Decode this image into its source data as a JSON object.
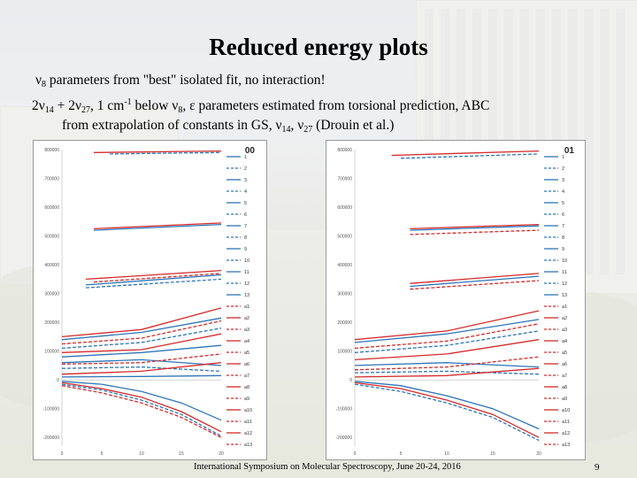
{
  "slide": {
    "title": "Reduced energy plots",
    "line1": {
      "sym1": "ν",
      "sub1": "8",
      "rest": " parameters from \"best\" isolated fit, no interaction!"
    },
    "line2": {
      "a": " 2ν",
      "sub_a": "14",
      "b": " + 2ν",
      "sub_b": "27",
      "c": ", 1 cm",
      "sup_c": "-1",
      "d": " below ν",
      "sub_d": "8",
      "e": ", ε parameters estimated from torsional prediction, ABC"
    },
    "line3": {
      "a": "from extrapolation of constants in GS, ν",
      "sub_a": "14",
      "b": ", ν",
      "sub_b": "27",
      "c": " (Drouin et al.)"
    },
    "footer": "International Symposium on Molecular Spectroscopy, June 20-24, 2016",
    "page_number": "9"
  },
  "colors": {
    "blue": "#2e75b6",
    "red": "#d32b2b"
  },
  "chart_data": [
    {
      "type": "line",
      "title": "00",
      "ylim": [
        -230000,
        800000
      ],
      "yticks": [
        "800000",
        "700000",
        "600000",
        "500000",
        "400000",
        "300000",
        "200000",
        "100000",
        "0",
        "-100000",
        "-200000"
      ],
      "xticks": [
        "0",
        "5",
        "10",
        "15",
        "20"
      ],
      "xlim": [
        0,
        20
      ],
      "legend": [
        "1",
        "2",
        "3",
        "4",
        "5",
        "6",
        "7",
        "8",
        "9",
        "10",
        "11",
        "12",
        "13",
        "a1",
        "a2",
        "a3",
        "a4",
        "a5",
        "a6",
        "a7",
        "a8",
        "a9",
        "a10",
        "a11",
        "a12",
        "a13"
      ],
      "series": [
        {
          "color": "red",
          "dash": false,
          "x": [
            4,
            20
          ],
          "y": [
            790000,
            795000
          ]
        },
        {
          "color": "blue",
          "dash": true,
          "x": [
            6,
            20
          ],
          "y": [
            785000,
            790000
          ]
        },
        {
          "color": "red",
          "dash": false,
          "x": [
            4,
            20
          ],
          "y": [
            525000,
            545000
          ]
        },
        {
          "color": "blue",
          "dash": false,
          "x": [
            4,
            20
          ],
          "y": [
            520000,
            540000
          ]
        },
        {
          "color": "red",
          "dash": false,
          "x": [
            3,
            20
          ],
          "y": [
            350000,
            380000
          ]
        },
        {
          "color": "blue",
          "dash": false,
          "x": [
            3,
            20
          ],
          "y": [
            330000,
            365000
          ]
        },
        {
          "color": "red",
          "dash": true,
          "x": [
            4,
            20
          ],
          "y": [
            340000,
            370000
          ]
        },
        {
          "color": "blue",
          "dash": true,
          "x": [
            3,
            20
          ],
          "y": [
            320000,
            350000
          ]
        },
        {
          "color": "red",
          "dash": false,
          "x": [
            0,
            10,
            20
          ],
          "y": [
            150000,
            175000,
            250000
          ]
        },
        {
          "color": "blue",
          "dash": false,
          "x": [
            0,
            10,
            20
          ],
          "y": [
            140000,
            165000,
            215000
          ]
        },
        {
          "color": "red",
          "dash": true,
          "x": [
            0,
            10,
            20
          ],
          "y": [
            125000,
            145000,
            205000
          ]
        },
        {
          "color": "blue",
          "dash": true,
          "x": [
            0,
            10,
            20
          ],
          "y": [
            110000,
            130000,
            180000
          ]
        },
        {
          "color": "red",
          "dash": false,
          "x": [
            0,
            10,
            20
          ],
          "y": [
            95000,
            105000,
            160000
          ]
        },
        {
          "color": "blue",
          "dash": false,
          "x": [
            0,
            10,
            20
          ],
          "y": [
            80000,
            95000,
            120000
          ]
        },
        {
          "color": "blue",
          "dash": false,
          "x": [
            0,
            10,
            20
          ],
          "y": [
            60000,
            70000,
            50000
          ]
        },
        {
          "color": "red",
          "dash": true,
          "x": [
            0,
            10,
            20
          ],
          "y": [
            55000,
            60000,
            90000
          ]
        },
        {
          "color": "blue",
          "dash": true,
          "x": [
            0,
            10,
            20
          ],
          "y": [
            40000,
            45000,
            30000
          ]
        },
        {
          "color": "red",
          "dash": false,
          "x": [
            0,
            10,
            20
          ],
          "y": [
            20000,
            30000,
            60000
          ]
        },
        {
          "color": "blue",
          "dash": false,
          "x": [
            0,
            10,
            20
          ],
          "y": [
            10000,
            12000,
            15000
          ]
        },
        {
          "color": "red",
          "dash": false,
          "x": [
            0,
            5,
            10,
            15,
            20
          ],
          "y": [
            -10000,
            -30000,
            -60000,
            -110000,
            -180000
          ]
        },
        {
          "color": "blue",
          "dash": true,
          "x": [
            0,
            5,
            10,
            15,
            20
          ],
          "y": [
            -15000,
            -35000,
            -70000,
            -120000,
            -195000
          ]
        },
        {
          "color": "red",
          "dash": true,
          "x": [
            0,
            5,
            10,
            15,
            20
          ],
          "y": [
            -20000,
            -45000,
            -80000,
            -130000,
            -200000
          ]
        },
        {
          "color": "blue",
          "dash": false,
          "x": [
            0,
            5,
            10,
            15,
            20
          ],
          "y": [
            -5000,
            -15000,
            -40000,
            -80000,
            -140000
          ]
        }
      ]
    },
    {
      "type": "line",
      "title": "01",
      "ylim": [
        -230000,
        800000
      ],
      "yticks": [
        "800000",
        "700000",
        "600000",
        "500000",
        "400000",
        "300000",
        "200000",
        "100000",
        "0",
        "-100000",
        "-200000"
      ],
      "xticks": [
        "0",
        "5",
        "10",
        "15",
        "20"
      ],
      "xlim": [
        0,
        20
      ],
      "legend": [
        "1",
        "2",
        "3",
        "4",
        "5",
        "6",
        "7",
        "8",
        "9",
        "10",
        "11",
        "12",
        "13",
        "a1",
        "a2",
        "a3",
        "a4",
        "a5",
        "a6",
        "a7",
        "a8",
        "a9",
        "a10",
        "a11",
        "a12",
        "a13"
      ],
      "series": [
        {
          "color": "red",
          "dash": false,
          "x": [
            4,
            20
          ],
          "y": [
            780000,
            795000
          ]
        },
        {
          "color": "blue",
          "dash": true,
          "x": [
            5,
            20
          ],
          "y": [
            770000,
            785000
          ]
        },
        {
          "color": "red",
          "dash": false,
          "x": [
            6,
            20
          ],
          "y": [
            525000,
            540000
          ]
        },
        {
          "color": "blue",
          "dash": false,
          "x": [
            6,
            20
          ],
          "y": [
            520000,
            535000
          ]
        },
        {
          "color": "red",
          "dash": true,
          "x": [
            6,
            20
          ],
          "y": [
            505000,
            520000
          ]
        },
        {
          "color": "red",
          "dash": false,
          "x": [
            6,
            20
          ],
          "y": [
            335000,
            370000
          ]
        },
        {
          "color": "blue",
          "dash": false,
          "x": [
            6,
            20
          ],
          "y": [
            325000,
            360000
          ]
        },
        {
          "color": "red",
          "dash": true,
          "x": [
            6,
            20
          ],
          "y": [
            315000,
            345000
          ]
        },
        {
          "color": "red",
          "dash": false,
          "x": [
            0,
            10,
            20
          ],
          "y": [
            140000,
            170000,
            240000
          ]
        },
        {
          "color": "blue",
          "dash": false,
          "x": [
            0,
            10,
            20
          ],
          "y": [
            130000,
            160000,
            210000
          ]
        },
        {
          "color": "red",
          "dash": true,
          "x": [
            0,
            10,
            20
          ],
          "y": [
            110000,
            135000,
            195000
          ]
        },
        {
          "color": "blue",
          "dash": true,
          "x": [
            0,
            10,
            20
          ],
          "y": [
            95000,
            120000,
            170000
          ]
        },
        {
          "color": "red",
          "dash": false,
          "x": [
            0,
            10,
            20
          ],
          "y": [
            70000,
            90000,
            140000
          ]
        },
        {
          "color": "blue",
          "dash": false,
          "x": [
            0,
            10,
            20
          ],
          "y": [
            50000,
            60000,
            45000
          ]
        },
        {
          "color": "red",
          "dash": true,
          "x": [
            0,
            10,
            20
          ],
          "y": [
            35000,
            45000,
            80000
          ]
        },
        {
          "color": "blue",
          "dash": true,
          "x": [
            0,
            10,
            20
          ],
          "y": [
            25000,
            30000,
            20000
          ]
        },
        {
          "color": "red",
          "dash": false,
          "x": [
            0,
            10,
            20
          ],
          "y": [
            10000,
            15000,
            40000
          ]
        },
        {
          "color": "red",
          "dash": false,
          "x": [
            0,
            5,
            10,
            15,
            20
          ],
          "y": [
            -10000,
            -30000,
            -70000,
            -120000,
            -200000
          ]
        },
        {
          "color": "blue",
          "dash": true,
          "x": [
            0,
            5,
            10,
            15,
            20
          ],
          "y": [
            -15000,
            -40000,
            -80000,
            -130000,
            -210000
          ]
        },
        {
          "color": "blue",
          "dash": false,
          "x": [
            0,
            5,
            10,
            15,
            20
          ],
          "y": [
            -5000,
            -20000,
            -55000,
            -100000,
            -170000
          ]
        }
      ]
    }
  ]
}
